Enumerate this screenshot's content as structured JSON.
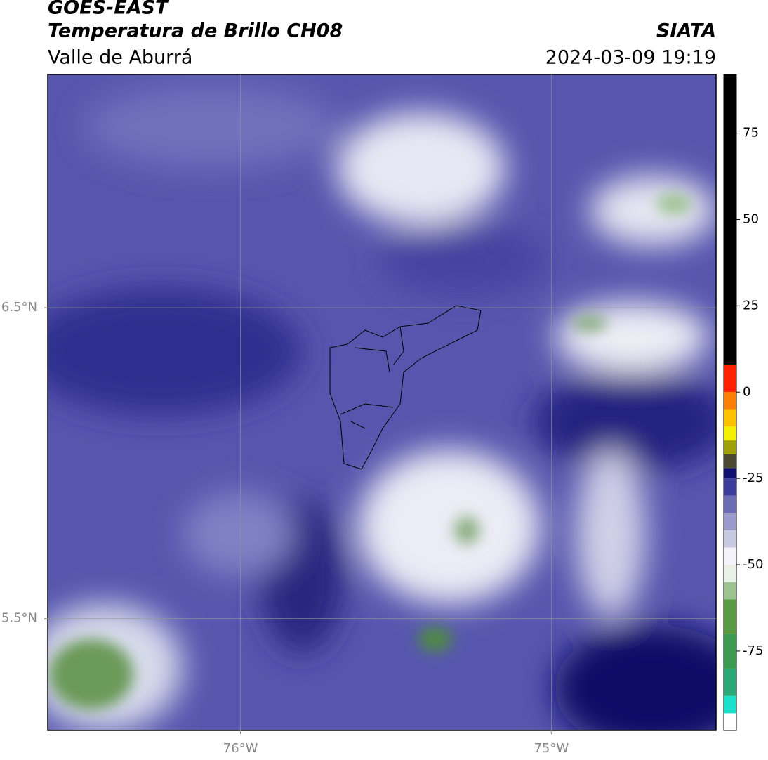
{
  "header": {
    "satellite": "GOES-EAST",
    "product": "Temperatura de Brillo CH08",
    "region": "Valle de Aburrá",
    "source": "SIATA",
    "datetime": "2024-03-09 19:19"
  },
  "map": {
    "xlim": [
      -76.62,
      -74.47
    ],
    "ylim": [
      5.14,
      7.25
    ],
    "xticks": [
      {
        "value": -76,
        "label": "76°W"
      },
      {
        "value": -75,
        "label": "75°W"
      }
    ],
    "yticks": [
      {
        "value": 6.5,
        "label": "6.5°N"
      },
      {
        "value": 5.5,
        "label": "5.5°N"
      }
    ],
    "grid": true
  },
  "colorbar": {
    "clim": [
      -98,
      92
    ],
    "ticks": [
      75,
      50,
      25,
      0,
      -25,
      -50,
      -75
    ],
    "bands": [
      {
        "from": -98,
        "to": -93,
        "color": "#ffffff"
      },
      {
        "from": -93,
        "to": -88,
        "color": "#19e0c8"
      },
      {
        "from": -88,
        "to": -80,
        "color": "#2aa878"
      },
      {
        "from": -80,
        "to": -70,
        "color": "#3c9a50"
      },
      {
        "from": -70,
        "to": -60,
        "color": "#5a9a40"
      },
      {
        "from": -60,
        "to": -55,
        "color": "#9cc490"
      },
      {
        "from": -55,
        "to": -50,
        "color": "#e8f0e8"
      },
      {
        "from": -50,
        "to": -45,
        "color": "#f4f4f8"
      },
      {
        "from": -45,
        "to": -40,
        "color": "#c8c8e0"
      },
      {
        "from": -40,
        "to": -35,
        "color": "#9a9acc"
      },
      {
        "from": -35,
        "to": -30,
        "color": "#6c6cb4"
      },
      {
        "from": -30,
        "to": -25,
        "color": "#3c3c9c"
      },
      {
        "from": -25,
        "to": -22,
        "color": "#101070"
      },
      {
        "from": -22,
        "to": -18,
        "color": "#4a4a30"
      },
      {
        "from": -18,
        "to": -14,
        "color": "#a0a000"
      },
      {
        "from": -14,
        "to": -10,
        "color": "#f0f000"
      },
      {
        "from": -10,
        "to": -5,
        "color": "#ffc000"
      },
      {
        "from": -5,
        "to": 0,
        "color": "#ff8000"
      },
      {
        "from": 0,
        "to": 8,
        "color": "#ff2000"
      },
      {
        "from": 8,
        "to": 92,
        "color": "#000000"
      }
    ]
  }
}
